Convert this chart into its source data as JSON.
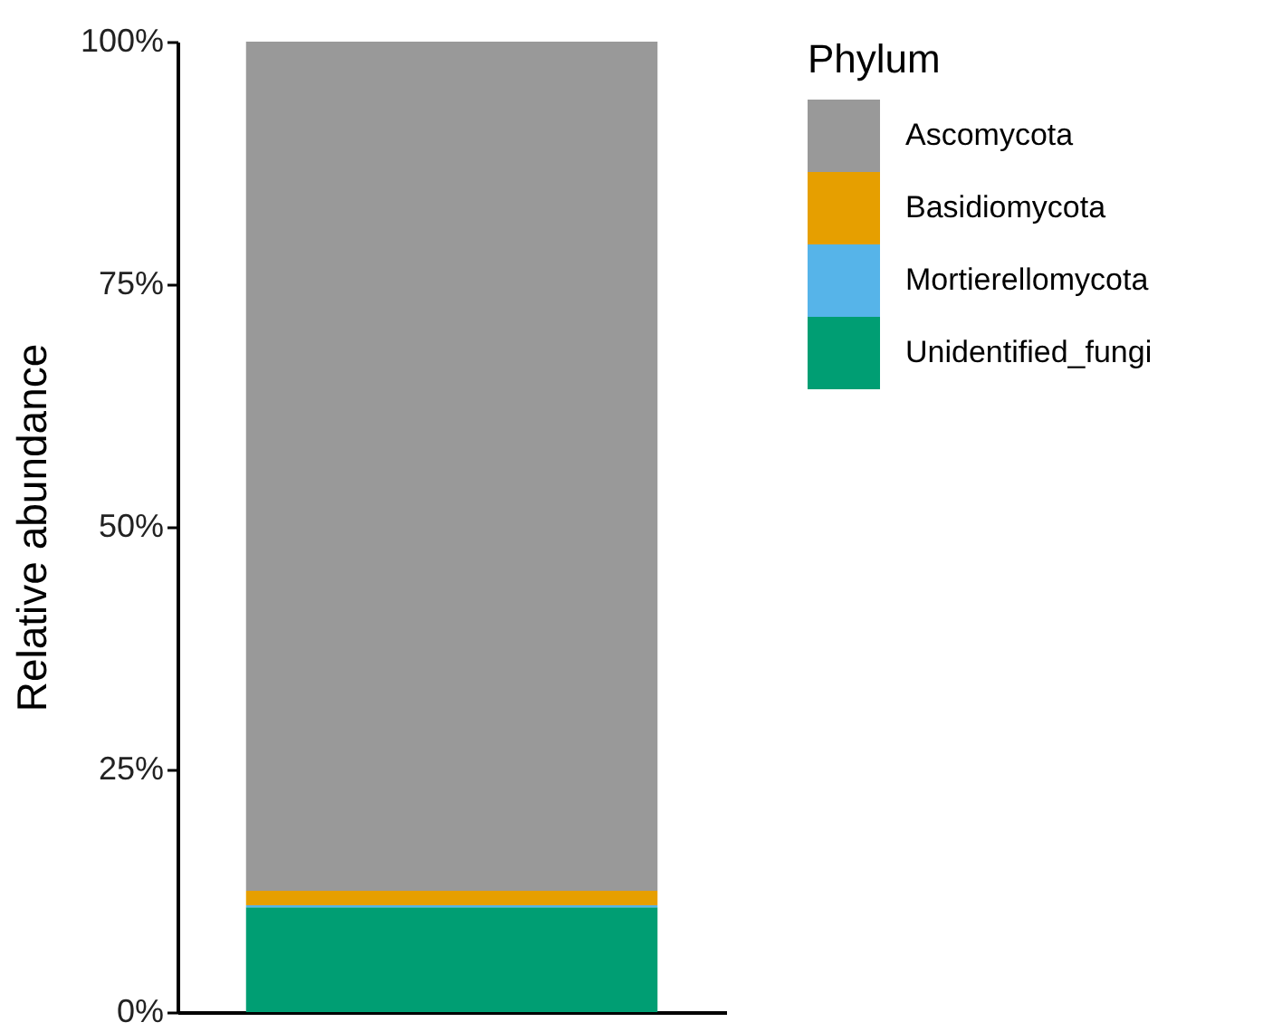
{
  "chart_data": {
    "type": "bar",
    "stacked": true,
    "categories": [
      null
    ],
    "ylabel": "Relative abundance",
    "legend_title": "Phylum",
    "legend": "right",
    "grid": false,
    "tick_labels": "y",
    "ylim": [
      0,
      100
    ],
    "yticks": [
      {
        "value": 0,
        "label": "0%"
      },
      {
        "value": 25,
        "label": "25%"
      },
      {
        "value": 50,
        "label": "50%"
      },
      {
        "value": 75,
        "label": "75%"
      },
      {
        "value": 100,
        "label": "100%"
      }
    ],
    "series": [
      {
        "name": "Unidentified_fungi",
        "color": "#009e73",
        "values": [
          10.8
        ]
      },
      {
        "name": "Mortierellomycota",
        "color": "#56b4e9",
        "values": [
          0.2
        ]
      },
      {
        "name": "Basidiomycota",
        "color": "#e69f00",
        "values": [
          1.5
        ]
      },
      {
        "name": "Ascomycota",
        "color": "#999999",
        "values": [
          87.5
        ]
      }
    ]
  }
}
